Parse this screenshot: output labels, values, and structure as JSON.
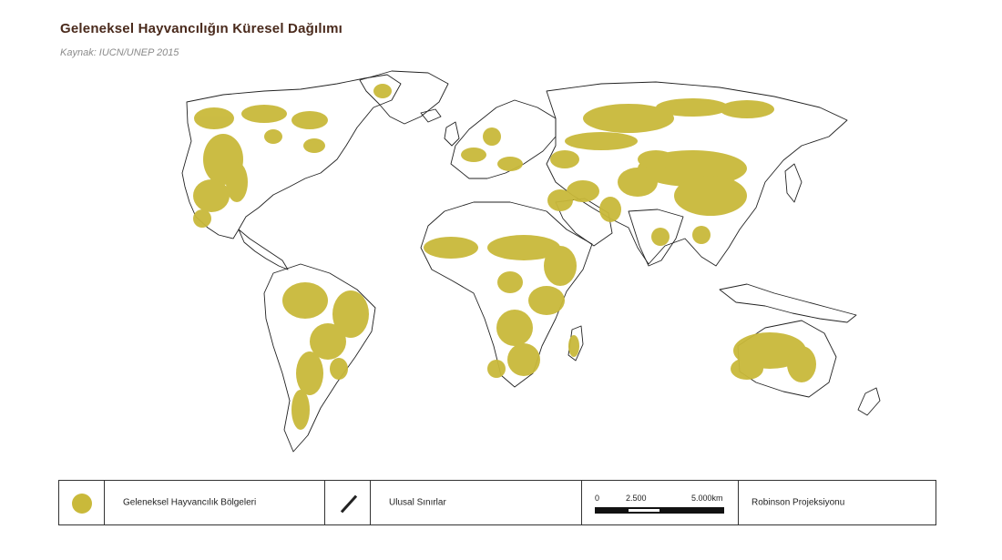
{
  "header": {
    "title": "Geleneksel Hayvancılığın Küresel Dağılımı",
    "source": "Kaynak: IUCN/UNEP 2015"
  },
  "colors": {
    "livestock": "#c9b93a",
    "border": "#222222",
    "title": "#4a2a1c"
  },
  "legend": {
    "livestock_label": "Geleneksel Hayvancılık Bölgeleri",
    "borders_label": "Ulusal Sınırlar",
    "scale": {
      "zero": "0",
      "mid": "2.500",
      "end": "5.000km"
    },
    "projection": "Robinson Projeksiyonu"
  }
}
